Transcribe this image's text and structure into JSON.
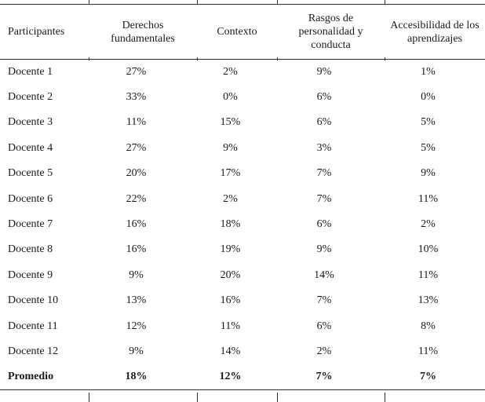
{
  "table": {
    "columns": [
      "Participantes",
      "Derechos fundamentales",
      "Contexto",
      "Rasgos de personalidad y conducta",
      "Accesibilidad de los aprendizajes"
    ],
    "rows": [
      {
        "participant": "Docente 1",
        "values": [
          "27%",
          "2%",
          "9%",
          "1%"
        ]
      },
      {
        "participant": "Docente 2",
        "values": [
          "33%",
          "0%",
          "6%",
          "0%"
        ]
      },
      {
        "participant": "Docente 3",
        "values": [
          "11%",
          "15%",
          "6%",
          "5%"
        ]
      },
      {
        "participant": "Docente 4",
        "values": [
          "27%",
          "9%",
          "3%",
          "5%"
        ]
      },
      {
        "participant": "Docente 5",
        "values": [
          "20%",
          "17%",
          "7%",
          "9%"
        ]
      },
      {
        "participant": "Docente 6",
        "values": [
          "22%",
          "2%",
          "7%",
          "11%"
        ]
      },
      {
        "participant": "Docente 7",
        "values": [
          "16%",
          "18%",
          "6%",
          "2%"
        ]
      },
      {
        "participant": "Docente 8",
        "values": [
          "16%",
          "19%",
          "9%",
          "10%"
        ]
      },
      {
        "participant": "Docente 9",
        "values": [
          "9%",
          "20%",
          "14%",
          "11%"
        ]
      },
      {
        "participant": "Docente 10",
        "values": [
          "13%",
          "16%",
          "7%",
          "13%"
        ]
      },
      {
        "participant": "Docente 11",
        "values": [
          "12%",
          "11%",
          "6%",
          "8%"
        ]
      },
      {
        "participant": "Docente 12",
        "values": [
          "9%",
          "14%",
          "2%",
          "11%"
        ]
      }
    ],
    "summary_row": {
      "participant": "Promedio",
      "values": [
        "18%",
        "12%",
        "7%",
        "7%"
      ]
    }
  },
  "colors": {
    "text": "#1a1a1a",
    "rule": "#2e2e2e",
    "background": "#ffffff"
  }
}
